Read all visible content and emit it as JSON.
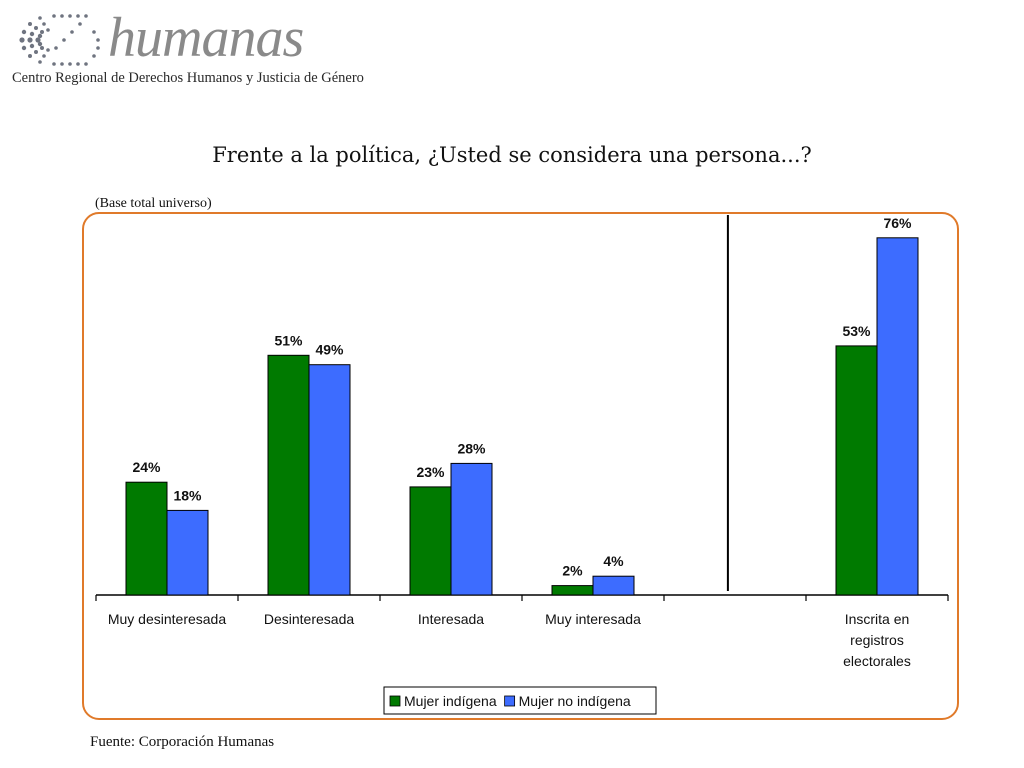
{
  "header": {
    "logo_word": "humanas",
    "logo_subtitle": "Centro Regional de Derechos Humanos y Justicia de Género"
  },
  "base_note": "(Base total universo)",
  "source_note": "Fuente: Corporación Humanas",
  "colors": {
    "frame": "#e07a2a",
    "mujer_indigena": "#007a00",
    "mujer_no_indigena": "#3d6cff",
    "logo_gray": "#8a8a8a"
  },
  "chart_data": {
    "type": "bar",
    "title": "Frente a la política, ¿Usted se considera una persona...?",
    "categories": [
      "Muy desinteresada",
      "Desinteresada",
      "Interesada",
      "Muy interesada",
      "",
      "Inscrita en registros electorales"
    ],
    "category_lines": [
      [
        "Muy desinteresada"
      ],
      [
        "Desinteresada"
      ],
      [
        "Interesada"
      ],
      [
        "Muy interesada"
      ],
      [],
      [
        "Inscrita en",
        "registros",
        "electorales"
      ]
    ],
    "series": [
      {
        "name": "Mujer indígena",
        "values": [
          24,
          51,
          23,
          2,
          null,
          53
        ],
        "labels": [
          "24%",
          "51%",
          "23%",
          "2%",
          "",
          "53%"
        ]
      },
      {
        "name": "Mujer no indígena",
        "values": [
          18,
          49,
          28,
          4,
          null,
          76
        ],
        "labels": [
          "18%",
          "49%",
          "28%",
          "4%",
          "",
          "76%"
        ]
      }
    ],
    "ylim": [
      0,
      80
    ],
    "grid": false,
    "legend_position": "bottom-center",
    "separator_after_category": 4
  }
}
